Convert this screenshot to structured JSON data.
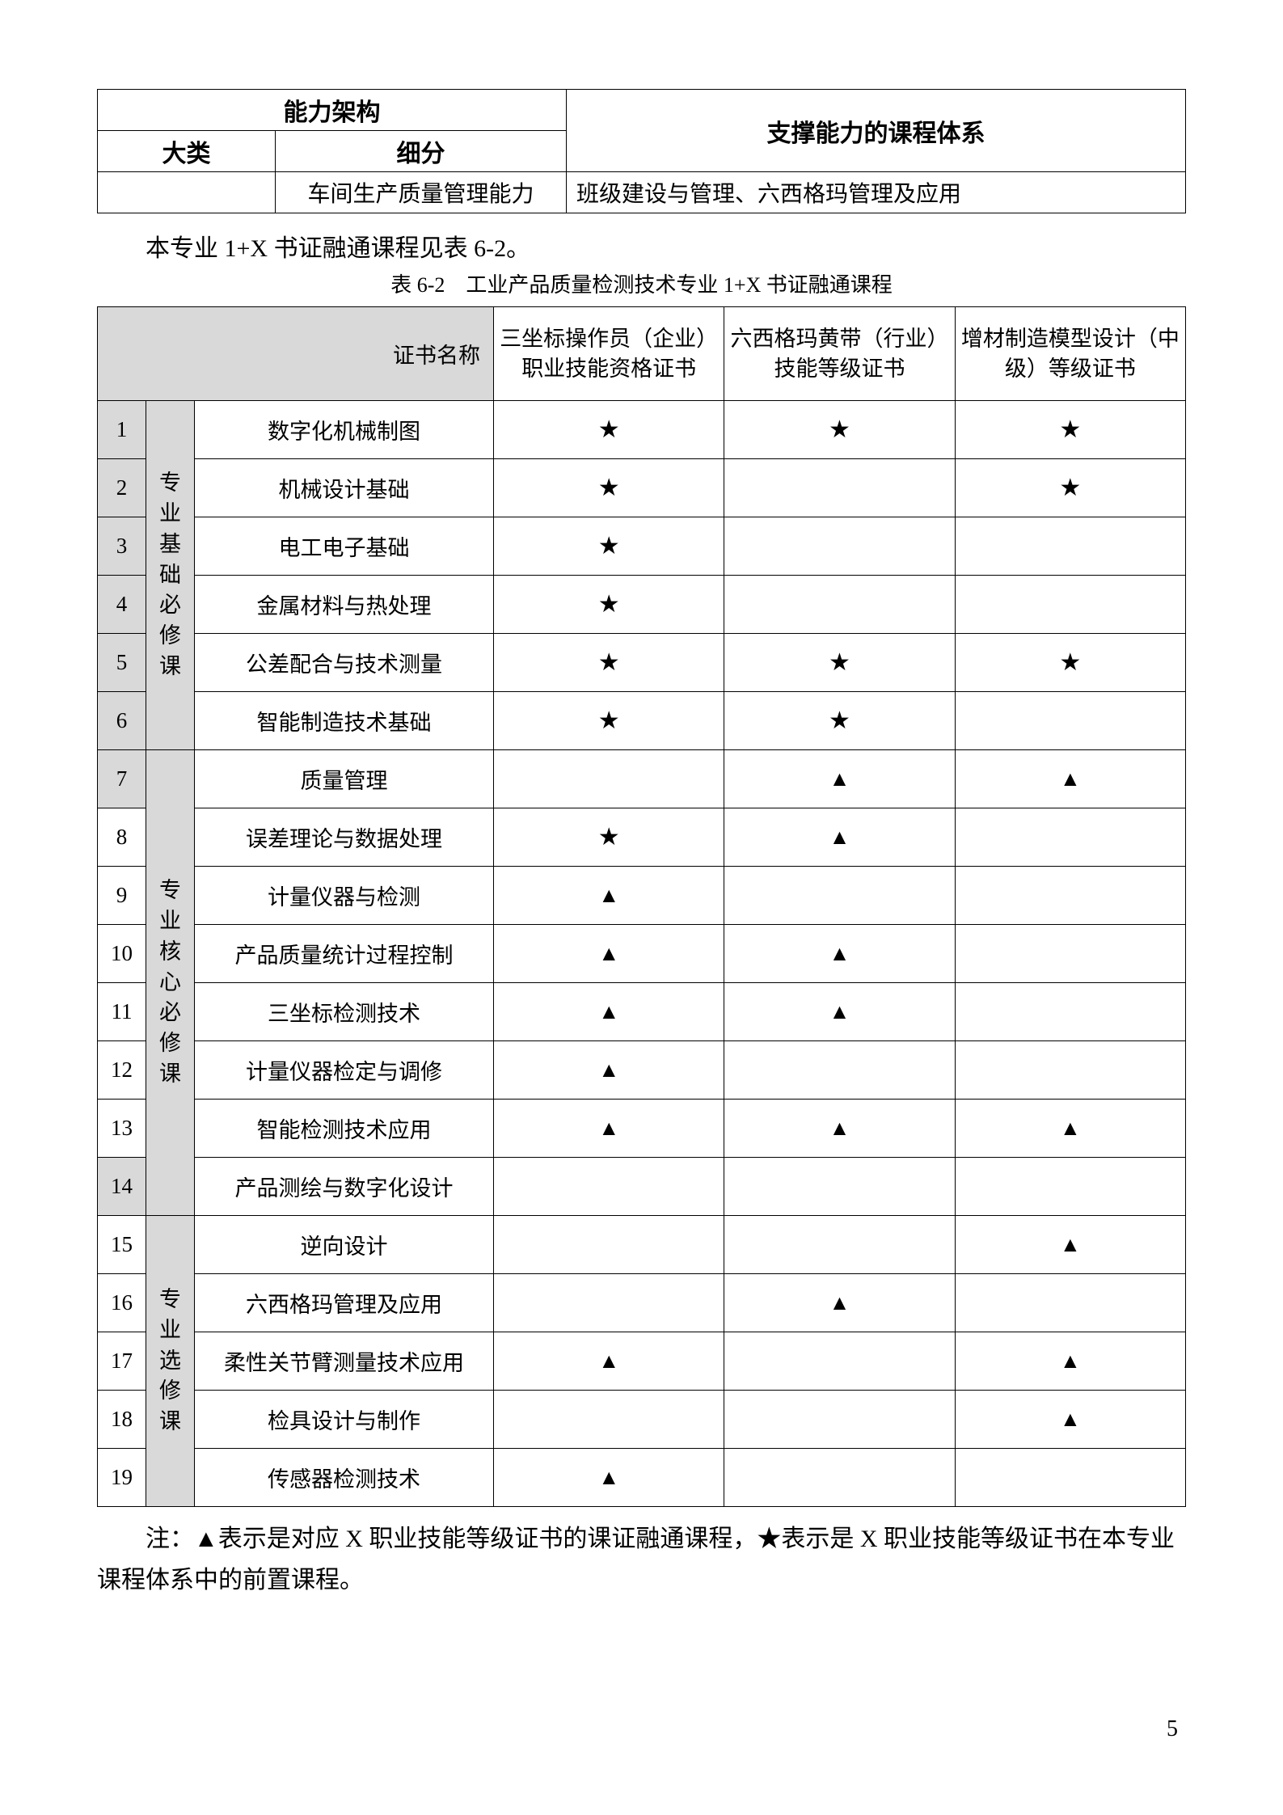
{
  "symbols": {
    "star": "★",
    "triangle": "▲"
  },
  "table1": {
    "hdr_ability": "能力架构",
    "hdr_major": "大类",
    "hdr_sub": "细分",
    "hdr_courses": "支撑能力的课程体系",
    "row_sub": "车间生产质量管理能力",
    "row_courses": "班级建设与管理、六西格玛管理及应用"
  },
  "intro": "本专业 1+X 书证融通课程见表 6-2。",
  "caption": "表 6-2　工业产品质量检测技术专业 1+X 书证融通课程",
  "table2": {
    "head_certlabel": "证书名称",
    "cert1": "三坐标操作员（企业）职业技能资格证书",
    "cert2": "六西格玛黄带（行业）技能等级证书",
    "cert3": "增材制造模型设计（中级）等级证书",
    "group1": "专业基础必修课",
    "group2": "专业核心必修课",
    "group3": "专业选修课",
    "rows": [
      {
        "n": "1",
        "name": "数字化机械制图",
        "c": [
          "star",
          "star",
          "star"
        ]
      },
      {
        "n": "2",
        "name": "机械设计基础",
        "c": [
          "star",
          "",
          "star"
        ]
      },
      {
        "n": "3",
        "name": "电工电子基础",
        "c": [
          "star",
          "",
          ""
        ]
      },
      {
        "n": "4",
        "name": "金属材料与热处理",
        "c": [
          "star",
          "",
          ""
        ]
      },
      {
        "n": "5",
        "name": "公差配合与技术测量",
        "c": [
          "star",
          "star",
          "star"
        ]
      },
      {
        "n": "6",
        "name": "智能制造技术基础",
        "c": [
          "star",
          "star",
          ""
        ]
      },
      {
        "n": "7",
        "name": "质量管理",
        "c": [
          "",
          "triangle",
          "triangle"
        ]
      },
      {
        "n": "8",
        "name": "误差理论与数据处理",
        "c": [
          "star",
          "triangle",
          ""
        ]
      },
      {
        "n": "9",
        "name": "计量仪器与检测",
        "c": [
          "triangle",
          "",
          ""
        ]
      },
      {
        "n": "10",
        "name": "产品质量统计过程控制",
        "c": [
          "triangle",
          "triangle",
          ""
        ]
      },
      {
        "n": "11",
        "name": "三坐标检测技术",
        "c": [
          "triangle",
          "triangle",
          ""
        ]
      },
      {
        "n": "12",
        "name": "计量仪器检定与调修",
        "c": [
          "triangle",
          "",
          ""
        ]
      },
      {
        "n": "13",
        "name": "智能检测技术应用",
        "c": [
          "triangle",
          "triangle",
          "triangle"
        ]
      },
      {
        "n": "14",
        "name": "产品测绘与数字化设计",
        "c": [
          "",
          "",
          ""
        ]
      },
      {
        "n": "15",
        "name": "逆向设计",
        "c": [
          "",
          "",
          "triangle"
        ]
      },
      {
        "n": "16",
        "name": "六西格玛管理及应用",
        "c": [
          "",
          "triangle",
          ""
        ]
      },
      {
        "n": "17",
        "name": "柔性关节臂测量技术应用",
        "c": [
          "triangle",
          "",
          "triangle"
        ]
      },
      {
        "n": "18",
        "name": "检具设计与制作",
        "c": [
          "",
          "",
          "triangle"
        ]
      },
      {
        "n": "19",
        "name": "传感器检测技术",
        "c": [
          "triangle",
          "",
          ""
        ]
      }
    ]
  },
  "note": "注：▲表示是对应 X 职业技能等级证书的课证融通课程，★表示是 X 职业技能等级证书在本专业课程体系中的前置课程。",
  "page_number": "5"
}
